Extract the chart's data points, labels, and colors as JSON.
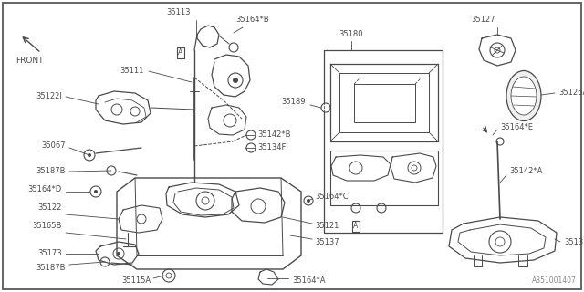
{
  "catalog_number": "A351001407",
  "bg": "#ffffff",
  "lc": "#4a4a4a",
  "tc": "#4a4a4a",
  "fig_w": 6.4,
  "fig_h": 3.2,
  "dpi": 100,
  "xlim": [
    0,
    640
  ],
  "ylim": [
    0,
    320
  ]
}
